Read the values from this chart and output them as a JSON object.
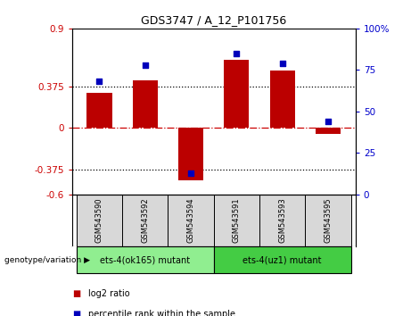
{
  "title": "GDS3747 / A_12_P101756",
  "samples": [
    "GSM543590",
    "GSM543592",
    "GSM543594",
    "GSM543591",
    "GSM543593",
    "GSM543595"
  ],
  "log2_ratio": [
    0.32,
    0.43,
    -0.47,
    0.62,
    0.52,
    -0.05
  ],
  "percentile_rank": [
    68,
    78,
    13,
    85,
    79,
    44
  ],
  "ylim_left": [
    -0.6,
    0.9
  ],
  "ylim_right": [
    0,
    100
  ],
  "yticks_left": [
    -0.6,
    -0.375,
    0,
    0.375,
    0.9
  ],
  "yticks_right": [
    0,
    25,
    50,
    75,
    100
  ],
  "hlines": [
    0.375,
    -0.375
  ],
  "bar_color": "#bb0000",
  "dot_color": "#0000bb",
  "group1_label": "ets-4(ok165) mutant",
  "group2_label": "ets-4(uz1) mutant",
  "group1_indices": [
    0,
    1,
    2
  ],
  "group2_indices": [
    3,
    4,
    5
  ],
  "group1_color": "#90ee90",
  "group2_color": "#44cc44",
  "legend_bar_label": "log2 ratio",
  "legend_dot_label": "percentile rank within the sample",
  "genotype_label": "genotype/variation",
  "ylabel_left_color": "#cc0000",
  "ylabel_right_color": "#0000cc",
  "bg_color": "#f0f0f0",
  "bar_width": 0.55
}
